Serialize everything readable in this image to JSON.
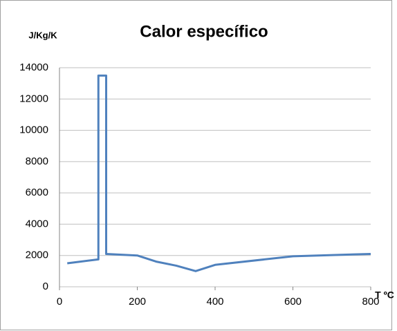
{
  "chart_data": {
    "type": "line",
    "title": "Calor específico",
    "y_label": "J/Kg/K",
    "x_label": "T ºC",
    "x": [
      20,
      100,
      100,
      120,
      120,
      200,
      250,
      300,
      350,
      400,
      600,
      800
    ],
    "series": [
      {
        "name": "Calor específico",
        "color": "#4f81bd",
        "values": [
          1500,
          1750,
          13500,
          13500,
          2100,
          2000,
          1600,
          1350,
          1000,
          1400,
          1950,
          2100
        ]
      }
    ],
    "xlim": [
      0,
      800
    ],
    "xticks": [
      0,
      200,
      400,
      600,
      800
    ],
    "ylim": [
      0,
      14000
    ],
    "yticks": [
      0,
      2000,
      4000,
      6000,
      8000,
      10000,
      12000,
      14000
    ],
    "grid": true
  }
}
